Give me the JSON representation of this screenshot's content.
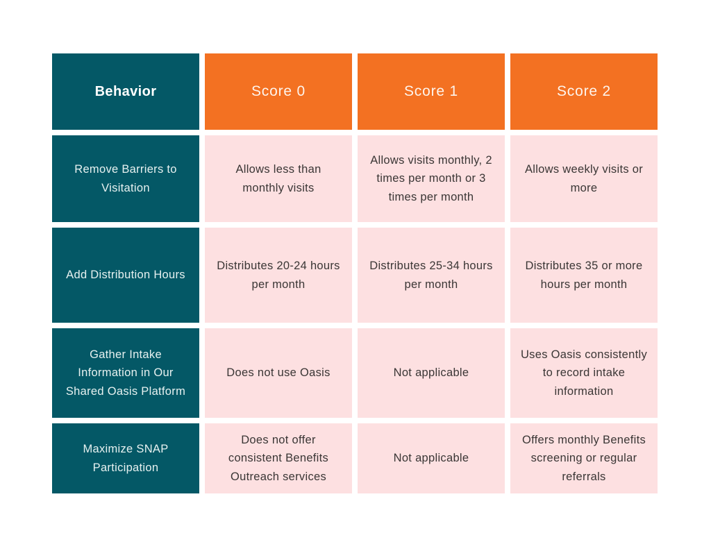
{
  "chart_data": {
    "type": "table",
    "title": "",
    "columns": [
      "Behavior",
      "Score 0",
      "Score 1",
      "Score 2"
    ],
    "rows": [
      [
        "Remove Barriers to Visitation",
        "Allows less than monthly visits",
        "Allows visits monthly, 2 times per month or 3 times per month",
        "Allows weekly visits or more"
      ],
      [
        "Add Distribution Hours",
        "Distributes 20-24 hours per month",
        "Distributes 25-34 hours per month",
        "Distributes 35 or more hours per month"
      ],
      [
        "Gather Intake Information in Our Shared Oasis Platform",
        "Does not use Oasis",
        "Not applicable",
        "Uses Oasis consistently to record intake information"
      ],
      [
        "Maximize SNAP Participation",
        "Does not offer consistent Benefits Outreach services",
        "Not applicable",
        "Offers monthly Benefits screening or regular referrals"
      ]
    ],
    "layout": {
      "header_row": true,
      "row_header_column": true,
      "grid": "off"
    }
  },
  "colors": {
    "teal": "#045866",
    "orange": "#f37122",
    "pink": "#fde0e1",
    "body_text": "#3a3635",
    "header_text": "#ffffff",
    "background": "#ffffff"
  }
}
